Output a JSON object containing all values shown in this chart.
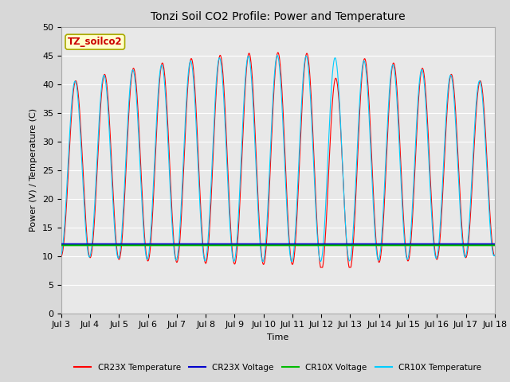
{
  "title": "Tonzi Soil CO2 Profile: Power and Temperature",
  "ylabel": "Power (V) / Temperature (C)",
  "xlabel": "Time",
  "annotation": "TZ_soilco2",
  "ylim": [
    0,
    50
  ],
  "xlim": [
    0,
    15
  ],
  "xtick_labels": [
    "Jul 3",
    "Jul 4",
    "Jul 5",
    "Jul 6",
    "Jul 7",
    "Jul 8",
    "Jul 9",
    "Jul 10",
    "Jul 11",
    "Jul 12",
    "Jul 13",
    "Jul 14",
    "Jul 15",
    "Jul 16",
    "Jul 17",
    "Jul 18"
  ],
  "ytick_values": [
    0,
    5,
    10,
    15,
    20,
    25,
    30,
    35,
    40,
    45,
    50
  ],
  "bg_color": "#e8e8e8",
  "grid_color": "#ffffff",
  "cr23x_temp_color": "#ff0000",
  "cr23x_volt_color": "#0000cc",
  "cr10x_volt_color": "#00bb00",
  "cr10x_temp_color": "#00ccff",
  "flat_cr23x_voltage": 12.1,
  "flat_cr10x_voltage": 11.9,
  "legend_labels": [
    "CR23X Temperature",
    "CR23X Voltage",
    "CR10X Voltage",
    "CR10X Temperature"
  ],
  "legend_colors": [
    "#ff0000",
    "#0000cc",
    "#00bb00",
    "#00ccff"
  ],
  "title_fontsize": 10,
  "axis_fontsize": 8,
  "figsize": [
    6.4,
    4.8
  ],
  "dpi": 100
}
